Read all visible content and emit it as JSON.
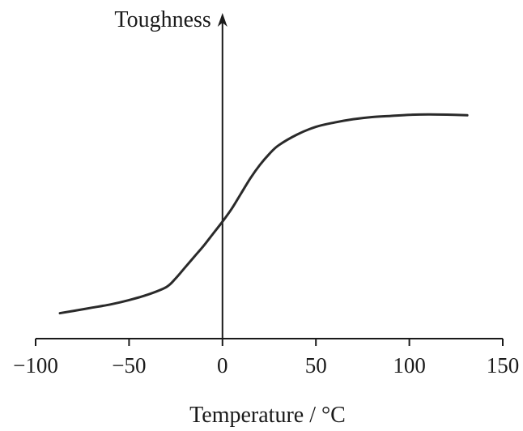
{
  "chart_data": {
    "type": "line",
    "title": "",
    "xlabel": "Temperature / °C",
    "ylabel": "Toughness",
    "xlim": [
      -100,
      150
    ],
    "x_ticks": [
      -100,
      -50,
      0,
      50,
      100,
      150
    ],
    "x_tick_labels": [
      "−100",
      "−50",
      "0",
      "50",
      "100",
      "150"
    ],
    "y_ticks_shown": false,
    "grid": false,
    "legend": "none",
    "colors": {
      "line": "#2a2a2a",
      "axis": "#1a1a1a"
    },
    "series": [
      {
        "x": [
          -87,
          -80,
          -70,
          -60,
          -50,
          -40,
          -30,
          -25,
          -20,
          -15,
          -10,
          -5,
          0,
          5,
          10,
          15,
          20,
          25,
          30,
          40,
          50,
          60,
          70,
          80,
          90,
          100,
          110,
          120,
          131
        ],
        "y": [
          0.05,
          0.06,
          0.075,
          0.09,
          0.11,
          0.135,
          0.17,
          0.21,
          0.26,
          0.31,
          0.36,
          0.415,
          0.47,
          0.53,
          0.6,
          0.67,
          0.73,
          0.78,
          0.82,
          0.87,
          0.905,
          0.925,
          0.94,
          0.95,
          0.955,
          0.96,
          0.962,
          0.961,
          0.958
        ]
      }
    ]
  }
}
